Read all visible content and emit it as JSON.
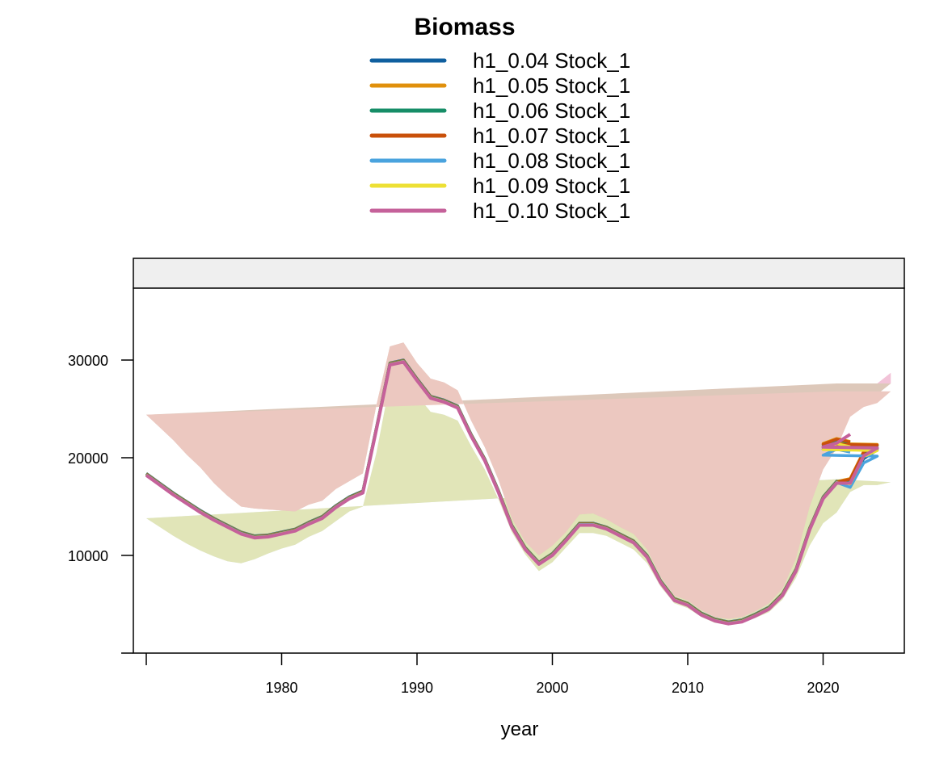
{
  "chart_data": {
    "type": "line",
    "title": "Biomass",
    "xlabel": "year",
    "ylabel": "",
    "strip_label": "",
    "xlim": [
      1969,
      2026
    ],
    "ylim": [
      0,
      37000
    ],
    "x_ticks": [
      1970,
      1980,
      1990,
      2000,
      2010,
      2020
    ],
    "x_tick_labels": [
      "",
      "1980",
      "1990",
      "2000",
      "2010",
      "2020"
    ],
    "y_ticks": [
      0,
      10000,
      20000,
      30000
    ],
    "y_tick_labels": [
      "",
      "10000",
      "20000",
      "30000"
    ],
    "legend_position": "top-center",
    "grid": false,
    "x": [
      1970,
      1971,
      1972,
      1973,
      1974,
      1975,
      1976,
      1977,
      1978,
      1979,
      1980,
      1981,
      1982,
      1983,
      1984,
      1985,
      1986,
      1987,
      1988,
      1989,
      1990,
      1991,
      1992,
      1993,
      1994,
      1995,
      1996,
      1997,
      1998,
      1999,
      2000,
      2001,
      2002,
      2003,
      2004,
      2005,
      2006,
      2007,
      2008,
      2009,
      2010,
      2011,
      2012,
      2013,
      2014,
      2015,
      2016,
      2017,
      2018,
      2019,
      2020,
      2021,
      2022,
      2023,
      2024,
      2025
    ],
    "common_values": [
      18300,
      17300,
      16300,
      15400,
      14500,
      13700,
      13000,
      12300,
      11900,
      12000,
      12300,
      12600,
      13300,
      13900,
      15000,
      15900,
      16500,
      23000,
      29600,
      29900,
      28000,
      26200,
      25800,
      25200,
      22300,
      19800,
      16600,
      13000,
      10700,
      9200,
      10100,
      11600,
      13200,
      13200,
      12800,
      12100,
      11400,
      9900,
      7300,
      5500,
      5000,
      4000,
      3400,
      3100,
      3300,
      3900,
      4600,
      6000,
      8500,
      12700,
      15900,
      17500
    ],
    "common_lower": [
      13800,
      12900,
      12000,
      11200,
      10500,
      9900,
      9400,
      9200,
      9600,
      10200,
      10700,
      11100,
      11900,
      12500,
      13500,
      14500,
      15000,
      20500,
      27700,
      28200,
      26400,
      24700,
      24400,
      23800,
      21200,
      18800,
      15800,
      12400,
      10100,
      8400,
      9300,
      10800,
      12300,
      12300,
      12000,
      11300,
      10600,
      9200,
      6800,
      5100,
      4600,
      3700,
      3100,
      2900,
      3100,
      3600,
      4200,
      5500,
      7700,
      11000,
      13300,
      14400
    ],
    "common_upper": [
      24400,
      23100,
      21800,
      20300,
      19000,
      17400,
      16100,
      15000,
      14800,
      14700,
      14600,
      14500,
      15200,
      15600,
      16800,
      17600,
      18400,
      25400,
      31400,
      31800,
      29700,
      28100,
      27700,
      26900,
      23800,
      21100,
      17800,
      13800,
      11400,
      10000,
      11000,
      12400,
      14200,
      14300,
      13700,
      12900,
      12200,
      10600,
      7800,
      5900,
      5400,
      4400,
      3700,
      3500,
      3700,
      4300,
      5100,
      6600,
      9700,
      15000,
      18800,
      21000
    ],
    "series": [
      {
        "name": "h1_0.04 Stock_1",
        "color": "#0F5F9F",
        "tail_x": [
          2020,
          2021,
          2022,
          2023,
          2024,
          2025
        ],
        "tail_values": [
          17300,
          19800,
          20700,
          20800,
          21300,
          21000
        ]
      },
      {
        "name": "h1_0.05 Stock_1",
        "color": "#E0900C",
        "tail_x": [
          2020,
          2021,
          2022,
          2023,
          2024,
          2025
        ],
        "tail_values": [
          17800,
          20600,
          21300,
          21400,
          21900,
          21600
        ]
      },
      {
        "name": "h1_0.06 Stock_1",
        "color": "#168D67",
        "tail_x": [
          2020,
          2021,
          2022,
          2023,
          2024,
          2025
        ],
        "tail_values": [
          17700,
          20500,
          21200,
          21300,
          21800,
          21500
        ]
      },
      {
        "name": "h1_0.07 Stock_1",
        "color": "#C9500A",
        "tail_x": [
          2020,
          2021,
          2022,
          2023,
          2024,
          2025
        ],
        "tail_values": [
          17800,
          20600,
          21300,
          21400,
          21900,
          21600
        ]
      },
      {
        "name": "h1_0.08 Stock_1",
        "color": "#4AA3DE",
        "tail_x": [
          2020,
          2021,
          2022,
          2023,
          2024,
          2025
        ],
        "tail_values": [
          17000,
          19500,
          20200,
          20300,
          20900,
          20600
        ]
      },
      {
        "name": "h1_0.09 Stock_1",
        "color": "#EDE035",
        "tail_x": [
          2020,
          2021,
          2022,
          2023,
          2024,
          2025
        ],
        "tail_values": [
          17400,
          20200,
          20800,
          20900,
          21500,
          21200
        ]
      },
      {
        "name": "h1_0.10 Stock_1",
        "color": "#C5619A",
        "tail_x": [
          2020,
          2021,
          2022,
          2023,
          2024,
          2025
        ],
        "tail_values": [
          17500,
          20300,
          21100,
          21200,
          21600,
          22500
        ]
      }
    ],
    "band_tail_upper": [
      22000,
      25100,
      26100,
      26500,
      27600,
      27600
    ],
    "band_tail_lower_low_series": [
      14200,
      16000,
      16600,
      16500,
      16700,
      16200
    ],
    "band_tail_lower_high_series": [
      14600,
      16500,
      17200,
      17200,
      17500,
      17800
    ],
    "band_tail_upper_low_series": [
      21000,
      24200,
      25200,
      25600,
      26800,
      26800
    ]
  }
}
